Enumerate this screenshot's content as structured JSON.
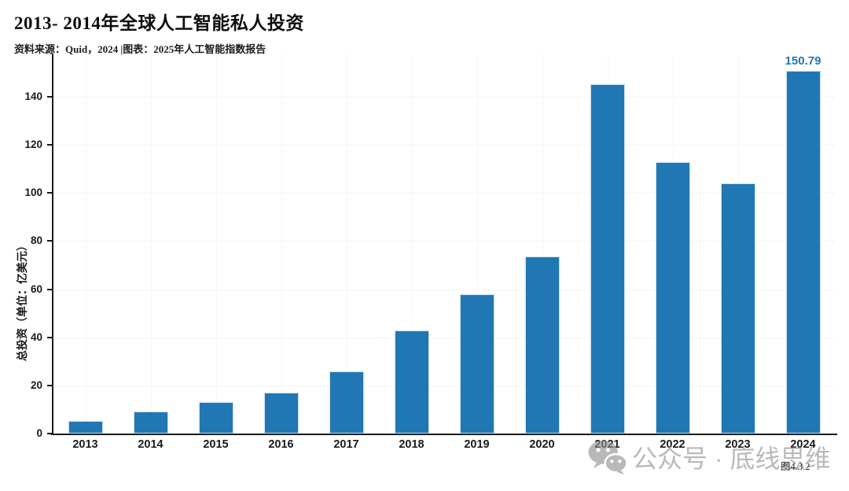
{
  "header": {
    "title": "2013- 2014年全球人工智能私人投资",
    "source_line": "资料来源：Quid，2024 |图表：2025年人工智能指数报告"
  },
  "chart_data": {
    "type": "bar",
    "title": "2013- 2014年全球人工智能私人投资",
    "categories": [
      "2013",
      "2014",
      "2015",
      "2016",
      "2017",
      "2018",
      "2019",
      "2020",
      "2021",
      "2022",
      "2023",
      "2024"
    ],
    "values": [
      5.2,
      9.3,
      13.2,
      17.0,
      26.0,
      43.0,
      58.0,
      73.7,
      145.2,
      112.9,
      104.1,
      150.79
    ],
    "xlabel": "",
    "ylabel": "总投资（单位：亿美元）",
    "ylim": [
      0,
      158
    ],
    "yticks": [
      0,
      20,
      40,
      60,
      80,
      100,
      120,
      140
    ],
    "grid": true,
    "legend": false,
    "bar_color": "#2077b4",
    "annotation_color": "#2077b4",
    "annotations": [
      {
        "category": "2024",
        "text": "150.79"
      }
    ]
  },
  "watermark": {
    "icon": "wechat-icon",
    "text": "公众号 · 底线思维"
  },
  "figure_caption": "图4.3.2"
}
